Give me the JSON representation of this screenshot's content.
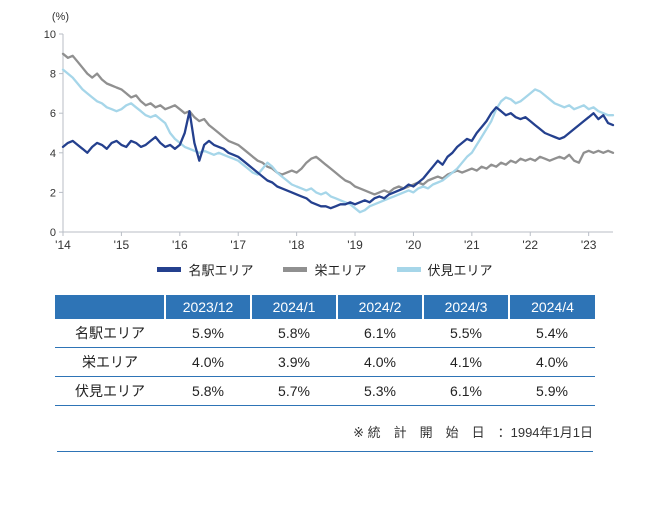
{
  "chart_data": {
    "type": "line",
    "title": "",
    "xlabel": "",
    "ylabel": "(%)",
    "ylim": [
      0,
      10
    ],
    "yticks": [
      0,
      2,
      4,
      6,
      8,
      10
    ],
    "grid": false,
    "legend_position": "bottom",
    "x_tick_labels": [
      "'14",
      "'15",
      "'16",
      "'17",
      "'18",
      "'19",
      "'20",
      "'21",
      "'22",
      "'23"
    ],
    "x_months_per_tick": 12,
    "x_start_year": 2014,
    "series": [
      {
        "name": "名駅エリア",
        "color": "#24408e",
        "values": [
          4.3,
          4.5,
          4.6,
          4.4,
          4.2,
          4.0,
          4.3,
          4.5,
          4.4,
          4.2,
          4.5,
          4.6,
          4.4,
          4.3,
          4.6,
          4.5,
          4.3,
          4.4,
          4.6,
          4.8,
          4.5,
          4.3,
          4.4,
          4.2,
          4.4,
          5.0,
          6.1,
          4.5,
          3.6,
          4.4,
          4.6,
          4.4,
          4.3,
          4.2,
          4.0,
          3.9,
          3.8,
          3.6,
          3.4,
          3.2,
          3.0,
          2.8,
          2.6,
          2.5,
          2.3,
          2.2,
          2.1,
          2.0,
          1.9,
          1.8,
          1.7,
          1.5,
          1.4,
          1.3,
          1.3,
          1.2,
          1.3,
          1.4,
          1.4,
          1.5,
          1.4,
          1.5,
          1.6,
          1.5,
          1.7,
          1.8,
          1.7,
          1.9,
          2.0,
          2.1,
          2.2,
          2.4,
          2.3,
          2.5,
          2.7,
          3.0,
          3.3,
          3.6,
          3.4,
          3.8,
          4.0,
          4.3,
          4.5,
          4.7,
          4.6,
          5.0,
          5.3,
          5.6,
          6.0,
          6.3,
          6.1,
          5.9,
          6.0,
          5.8,
          5.7,
          5.8,
          5.6,
          5.4,
          5.2,
          5.0,
          4.9,
          4.8,
          4.7,
          4.8,
          5.0,
          5.2,
          5.4,
          5.6,
          5.8,
          6.0,
          5.7,
          5.9,
          5.5,
          5.4
        ]
      },
      {
        "name": "栄エリア",
        "color": "#909090",
        "values": [
          9.0,
          8.8,
          8.9,
          8.6,
          8.3,
          8.0,
          7.8,
          8.0,
          7.7,
          7.5,
          7.4,
          7.3,
          7.2,
          7.0,
          6.8,
          6.9,
          6.6,
          6.4,
          6.5,
          6.3,
          6.4,
          6.2,
          6.3,
          6.4,
          6.2,
          6.0,
          6.1,
          5.8,
          5.6,
          5.7,
          5.4,
          5.2,
          5.0,
          4.8,
          4.6,
          4.5,
          4.4,
          4.2,
          4.0,
          3.8,
          3.6,
          3.5,
          3.3,
          3.2,
          3.0,
          2.9,
          3.0,
          3.1,
          3.0,
          3.2,
          3.5,
          3.7,
          3.8,
          3.6,
          3.4,
          3.2,
          3.0,
          2.8,
          2.6,
          2.5,
          2.3,
          2.2,
          2.1,
          2.0,
          1.9,
          2.0,
          2.1,
          2.0,
          2.2,
          2.3,
          2.2,
          2.3,
          2.4,
          2.5,
          2.4,
          2.6,
          2.7,
          2.8,
          2.7,
          2.9,
          3.0,
          3.1,
          3.0,
          3.1,
          3.2,
          3.1,
          3.3,
          3.2,
          3.4,
          3.3,
          3.5,
          3.4,
          3.6,
          3.5,
          3.7,
          3.6,
          3.7,
          3.6,
          3.8,
          3.7,
          3.6,
          3.7,
          3.8,
          3.7,
          3.9,
          3.6,
          3.5,
          4.0,
          4.1,
          4.0,
          4.1,
          4.0,
          4.1,
          4.0
        ]
      },
      {
        "name": "伏見エリア",
        "color": "#a6d6e9",
        "values": [
          8.2,
          8.0,
          7.8,
          7.5,
          7.2,
          7.0,
          6.8,
          6.6,
          6.5,
          6.3,
          6.2,
          6.1,
          6.2,
          6.4,
          6.5,
          6.3,
          6.1,
          5.9,
          5.8,
          5.9,
          5.7,
          5.5,
          5.0,
          4.7,
          4.5,
          4.3,
          4.2,
          4.1,
          4.0,
          4.1,
          4.0,
          3.9,
          4.0,
          3.9,
          3.8,
          3.7,
          3.6,
          3.4,
          3.2,
          3.0,
          2.9,
          3.2,
          3.5,
          3.3,
          3.0,
          2.8,
          2.6,
          2.4,
          2.3,
          2.2,
          2.1,
          2.2,
          2.0,
          1.9,
          2.0,
          1.8,
          1.7,
          1.6,
          1.5,
          1.4,
          1.2,
          1.0,
          1.1,
          1.3,
          1.4,
          1.5,
          1.6,
          1.7,
          1.8,
          1.9,
          2.0,
          2.1,
          2.0,
          2.2,
          2.3,
          2.2,
          2.4,
          2.5,
          2.6,
          2.8,
          3.0,
          3.2,
          3.5,
          3.8,
          4.0,
          4.4,
          4.8,
          5.2,
          5.6,
          6.2,
          6.6,
          6.8,
          6.7,
          6.5,
          6.6,
          6.8,
          7.0,
          7.2,
          7.1,
          6.9,
          6.7,
          6.5,
          6.4,
          6.3,
          6.4,
          6.2,
          6.3,
          6.4,
          6.2,
          6.3,
          6.1,
          6.0,
          5.9,
          5.9
        ]
      }
    ]
  },
  "table": {
    "header": [
      "",
      "2023/12",
      "2024/1",
      "2024/2",
      "2024/3",
      "2024/4"
    ],
    "rows": [
      {
        "label": "名駅エリア",
        "values": [
          "5.9%",
          "5.8%",
          "6.1%",
          "5.5%",
          "5.4%"
        ]
      },
      {
        "label": "栄エリア",
        "values": [
          "4.0%",
          "3.9%",
          "4.0%",
          "4.1%",
          "4.0%"
        ]
      },
      {
        "label": "伏見エリア",
        "values": [
          "5.8%",
          "5.7%",
          "5.3%",
          "6.1%",
          "5.9%"
        ]
      }
    ]
  },
  "note": "※ 統　計　開　始　日　：1994年1月1日",
  "colors": {
    "accent_blue": "#2e74b6",
    "axis_gray": "#b9bec6"
  }
}
